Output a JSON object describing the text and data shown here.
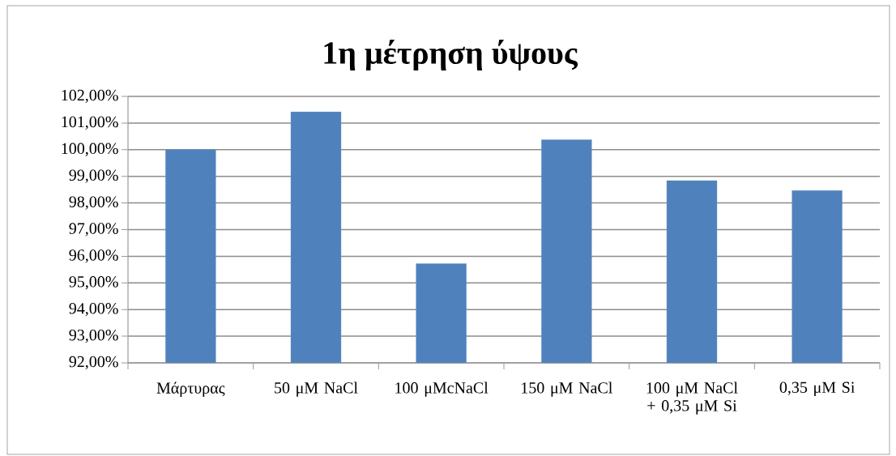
{
  "chart_data": {
    "type": "bar",
    "title": "1η μέτρηση ύψους",
    "categories": [
      "Μάρτυρας",
      "50 μM NaCl",
      "100 μMcNaCl",
      "150 μM NaCl",
      "100 μM NaCl + 0,35 μM Si",
      "0,35 μM Si"
    ],
    "values": [
      100.0,
      101.42,
      95.72,
      100.37,
      98.84,
      98.47
    ],
    "color": "#4f81bd",
    "ylim": [
      92,
      102
    ],
    "yticks": [
      {
        "value": 92,
        "label": "92,00%"
      },
      {
        "value": 93,
        "label": "93,00%"
      },
      {
        "value": 94,
        "label": "94,00%"
      },
      {
        "value": 95,
        "label": "95,00%"
      },
      {
        "value": 96,
        "label": "96,00%"
      },
      {
        "value": 97,
        "label": "97,00%"
      },
      {
        "value": 98,
        "label": "98,00%"
      },
      {
        "value": 99,
        "label": "99,00%"
      },
      {
        "value": 100,
        "label": "100,00%"
      },
      {
        "value": 101,
        "label": "101,00%"
      },
      {
        "value": 102,
        "label": "102,00%"
      }
    ],
    "grid": "y"
  }
}
